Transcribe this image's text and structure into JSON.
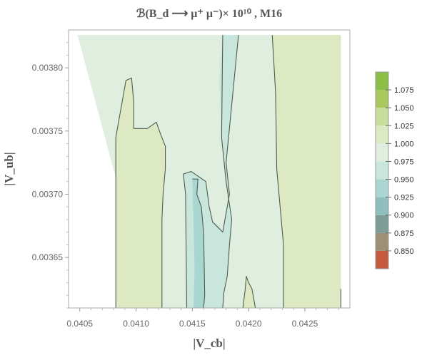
{
  "chart_data": {
    "type": "contour",
    "title": "ℬ(B_d ⟶ μ⁺ μ⁻)× 10¹⁰ , M16",
    "xlabel": "|V_cb|",
    "ylabel": "|V_ub|",
    "xlim": [
      0.0404,
      0.0429
    ],
    "ylim": [
      0.00361,
      0.00383
    ],
    "x_ticks": [
      0.0405,
      0.041,
      0.0415,
      0.042,
      0.0425
    ],
    "x_tick_labels": [
      "0.0405",
      "0.0410",
      "0.0415",
      "0.0420",
      "0.0425"
    ],
    "y_ticks": [
      0.00365,
      0.0037,
      0.00375,
      0.0038
    ],
    "y_tick_labels": [
      "0.00365",
      "0.00370",
      "0.00375",
      "0.00380"
    ],
    "legend": {
      "placement": "right",
      "levels": [
        0.85,
        0.875,
        0.9,
        0.925,
        0.95,
        0.975,
        1.0,
        1.025,
        1.05,
        1.075
      ],
      "level_labels": [
        "0.850",
        "0.875",
        "0.900",
        "0.925",
        "0.950",
        "0.975",
        "1.000",
        "1.025",
        "1.050",
        "1.075"
      ],
      "band_colors": [
        "#c55a3f",
        "#9e8f77",
        "#7d9c96",
        "#8fbfbd",
        "#a9d6d0",
        "#c9e6dd",
        "#dfeede",
        "#dde9c2",
        "#c9dd9b",
        "#a9c95f",
        "#8cbf45"
      ]
    },
    "regions": [
      {
        "name": "base-region",
        "level": 1.0,
        "fill": "#dfeede",
        "polygon": [
          [
            0.04048,
            0.003826
          ],
          [
            0.04282,
            0.003826
          ],
          [
            0.04282,
            0.00361
          ],
          [
            0.04113,
            0.00361
          ]
        ]
      },
      {
        "name": "left-high-region",
        "level": 1.025,
        "fill": "#dde9c2",
        "polygon": [
          [
            0.04082,
            0.00361
          ],
          [
            0.04082,
            0.003745
          ],
          [
            0.04091,
            0.00379
          ],
          [
            0.04096,
            0.003792
          ],
          [
            0.04098,
            0.003772
          ],
          [
            0.04098,
            0.003752
          ],
          [
            0.0411,
            0.003752
          ],
          [
            0.04118,
            0.003757
          ],
          [
            0.04122,
            0.003747
          ],
          [
            0.04126,
            0.003738
          ],
          [
            0.04126,
            0.00372
          ],
          [
            0.04124,
            0.0037
          ],
          [
            0.04123,
            0.00368
          ],
          [
            0.04123,
            0.00361
          ]
        ]
      },
      {
        "name": "right-high-region",
        "level": 1.025,
        "fill": "#dde9c2",
        "polygon": [
          [
            0.04221,
            0.003826
          ],
          [
            0.04282,
            0.003826
          ],
          [
            0.04282,
            0.00361
          ],
          [
            0.04231,
            0.00361
          ],
          [
            0.04231,
            0.00366
          ],
          [
            0.04225,
            0.00372
          ],
          [
            0.04224,
            0.00378
          ]
        ]
      },
      {
        "name": "center-low-region",
        "level": 0.975,
        "fill": "#c9e6dd",
        "polygon": [
          [
            0.04177,
            0.003826
          ],
          [
            0.04191,
            0.003826
          ],
          [
            0.04186,
            0.00378
          ],
          [
            0.0418,
            0.003725
          ],
          [
            0.04183,
            0.0037
          ],
          [
            0.0418,
            0.003685
          ],
          [
            0.04177,
            0.00367
          ],
          [
            0.04174,
            0.003675
          ],
          [
            0.04168,
            0.003678
          ],
          [
            0.04165,
            0.00369
          ],
          [
            0.04163,
            0.003705
          ],
          [
            0.04162,
            0.00371
          ],
          [
            0.04157,
            0.003714
          ],
          [
            0.04149,
            0.003718
          ],
          [
            0.04142,
            0.003716
          ],
          [
            0.04144,
            0.0037
          ],
          [
            0.04145,
            0.00362
          ],
          [
            0.04145,
            0.00361
          ],
          [
            0.04177,
            0.00361
          ],
          [
            0.04178,
            0.003622
          ],
          [
            0.04181,
            0.003635
          ],
          [
            0.04183,
            0.00366
          ],
          [
            0.04185,
            0.00368
          ],
          [
            0.0418,
            0.00371
          ],
          [
            0.04176,
            0.003745
          ],
          [
            0.04174,
            0.00379
          ]
        ]
      },
      {
        "name": "inner-low-region",
        "level": 0.95,
        "fill": "#a9d6d0",
        "polygon": [
          [
            0.0415,
            0.003712
          ],
          [
            0.04155,
            0.003712
          ],
          [
            0.04154,
            0.0037
          ],
          [
            0.04158,
            0.00369
          ],
          [
            0.0416,
            0.00367
          ],
          [
            0.04161,
            0.00362
          ],
          [
            0.0416,
            0.00361
          ],
          [
            0.04151,
            0.00361
          ],
          [
            0.04152,
            0.00364
          ],
          [
            0.04151,
            0.00368
          ]
        ]
      },
      {
        "name": "bottom-small-high-region",
        "level": 1.025,
        "fill": "#dde9c2",
        "polygon": [
          [
            0.04195,
            0.00361
          ],
          [
            0.04197,
            0.003625
          ],
          [
            0.04198,
            0.003635
          ],
          [
            0.042,
            0.00363
          ],
          [
            0.04203,
            0.003625
          ],
          [
            0.04206,
            0.00361
          ]
        ]
      }
    ],
    "contour_paths": [
      [
        [
          0.04082,
          0.00361
        ],
        [
          0.04082,
          0.003745
        ],
        [
          0.04091,
          0.00379
        ],
        [
          0.04096,
          0.003792
        ],
        [
          0.04098,
          0.003772
        ],
        [
          0.04098,
          0.003752
        ],
        [
          0.0411,
          0.003752
        ],
        [
          0.04118,
          0.003757
        ],
        [
          0.04122,
          0.003747
        ],
        [
          0.04126,
          0.003738
        ],
        [
          0.04126,
          0.00372
        ],
        [
          0.04124,
          0.0037
        ],
        [
          0.04123,
          0.00368
        ],
        [
          0.04123,
          0.00361
        ]
      ],
      [
        [
          0.04177,
          0.003826
        ],
        [
          0.04176,
          0.003745
        ],
        [
          0.0418,
          0.00371
        ],
        [
          0.04185,
          0.00368
        ],
        [
          0.04183,
          0.00366
        ],
        [
          0.04181,
          0.003635
        ],
        [
          0.04178,
          0.003622
        ],
        [
          0.04177,
          0.00361
        ]
      ],
      [
        [
          0.04191,
          0.003826
        ],
        [
          0.04186,
          0.00378
        ],
        [
          0.0418,
          0.003725
        ],
        [
          0.04183,
          0.0037
        ],
        [
          0.04177,
          0.00367
        ],
        [
          0.04168,
          0.003678
        ],
        [
          0.04165,
          0.00369
        ],
        [
          0.04162,
          0.00371
        ],
        [
          0.04149,
          0.003718
        ],
        [
          0.04142,
          0.003716
        ],
        [
          0.04144,
          0.0037
        ],
        [
          0.04145,
          0.00361
        ]
      ],
      [
        [
          0.0415,
          0.003712
        ],
        [
          0.04155,
          0.003712
        ],
        [
          0.04154,
          0.0037
        ],
        [
          0.04158,
          0.00369
        ],
        [
          0.0416,
          0.00367
        ],
        [
          0.04161,
          0.00362
        ],
        [
          0.0416,
          0.00361
        ]
      ],
      [
        [
          0.04221,
          0.003826
        ],
        [
          0.04224,
          0.00378
        ],
        [
          0.04225,
          0.00372
        ],
        [
          0.04231,
          0.00366
        ],
        [
          0.04231,
          0.00361
        ]
      ],
      [
        [
          0.04195,
          0.00361
        ],
        [
          0.04197,
          0.003625
        ],
        [
          0.04198,
          0.003635
        ],
        [
          0.042,
          0.00363
        ],
        [
          0.04203,
          0.003625
        ],
        [
          0.04206,
          0.00361
        ]
      ],
      [
        [
          0.04282,
          0.00361
        ],
        [
          0.04282,
          0.003625
        ]
      ]
    ]
  }
}
